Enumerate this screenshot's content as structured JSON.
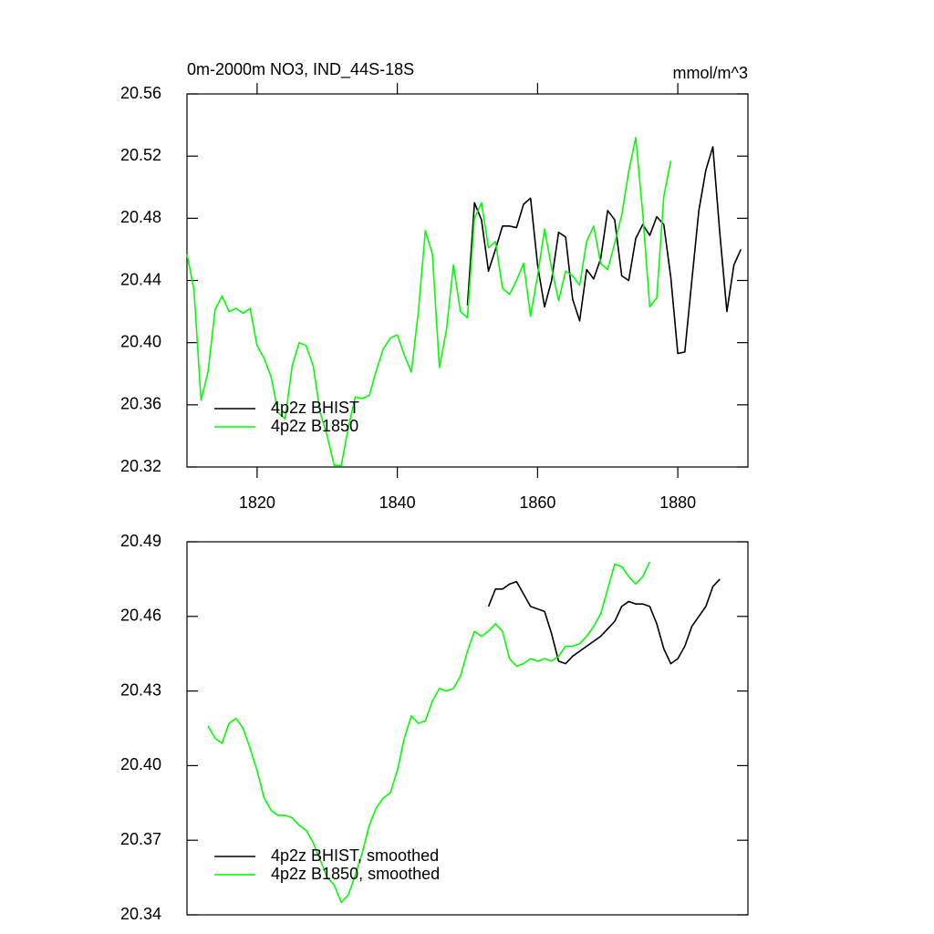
{
  "chart_data": [
    {
      "type": "line",
      "title": "0m-2000m NO3, IND_44S-18S",
      "units": "mmol/m^3",
      "x": [
        1810,
        1811,
        1812,
        1813,
        1814,
        1815,
        1816,
        1817,
        1818,
        1819,
        1820,
        1821,
        1822,
        1823,
        1824,
        1825,
        1826,
        1827,
        1828,
        1829,
        1830,
        1831,
        1832,
        1833,
        1834,
        1835,
        1836,
        1837,
        1838,
        1839,
        1840,
        1841,
        1842,
        1843,
        1844,
        1845,
        1846,
        1847,
        1848,
        1849,
        1850,
        1851,
        1852,
        1853,
        1854,
        1855,
        1856,
        1857,
        1858,
        1859,
        1860,
        1861,
        1862,
        1863,
        1864,
        1865,
        1866,
        1867,
        1868,
        1869,
        1870,
        1871,
        1872,
        1873,
        1874,
        1875,
        1876,
        1877,
        1878,
        1879,
        1880,
        1881,
        1882,
        1883,
        1884,
        1885,
        1886,
        1887,
        1888,
        1889
      ],
      "series": [
        {
          "name": "4p2z BHIST",
          "color": "#000000",
          "values": [
            null,
            null,
            null,
            null,
            null,
            null,
            null,
            null,
            null,
            null,
            null,
            null,
            null,
            null,
            null,
            null,
            null,
            null,
            null,
            null,
            null,
            null,
            null,
            null,
            null,
            null,
            null,
            null,
            null,
            null,
            null,
            null,
            null,
            null,
            null,
            null,
            null,
            null,
            null,
            null,
            20.424,
            20.49,
            20.479,
            20.446,
            20.46,
            20.475,
            20.475,
            20.474,
            20.489,
            20.493,
            20.45,
            20.423,
            20.44,
            20.471,
            20.468,
            20.428,
            20.414,
            20.447,
            20.441,
            20.454,
            20.485,
            20.479,
            20.443,
            20.44,
            20.467,
            20.476,
            20.469,
            20.481,
            20.476,
            20.442,
            20.393,
            20.394,
            20.44,
            20.485,
            20.511,
            20.526,
            20.47,
            20.42,
            20.45,
            20.46
          ]
        },
        {
          "name": "4p2z B1850",
          "color": "#00ff00",
          "values": [
            20.457,
            20.434,
            20.363,
            20.381,
            20.421,
            20.43,
            20.42,
            20.422,
            20.419,
            20.422,
            20.398,
            20.39,
            20.378,
            20.355,
            20.351,
            20.385,
            20.4,
            20.398,
            20.385,
            20.355,
            20.34,
            20.321,
            20.321,
            20.345,
            20.365,
            20.364,
            20.366,
            20.382,
            20.396,
            20.403,
            20.405,
            20.392,
            20.381,
            20.42,
            20.472,
            20.457,
            20.384,
            20.408,
            20.45,
            20.42,
            20.416,
            20.48,
            20.49,
            20.461,
            20.465,
            20.435,
            20.431,
            20.44,
            20.451,
            20.417,
            20.443,
            20.473,
            20.448,
            20.427,
            20.446,
            20.443,
            20.437,
            20.465,
            20.475,
            20.451,
            20.447,
            20.464,
            20.482,
            20.51,
            20.532,
            20.483,
            20.423,
            20.429,
            20.494,
            20.517,
            null,
            null,
            null,
            null,
            null,
            null,
            null,
            null,
            null,
            null
          ]
        }
      ],
      "xlim": [
        1810,
        1890
      ],
      "xticks": [
        1820,
        1840,
        1860,
        1880
      ],
      "ylim": [
        20.32,
        20.56
      ],
      "yticks": [
        20.32,
        20.36,
        {
          "value": 20.4,
          "label": "20.40"
        },
        20.44,
        20.48,
        20.52,
        20.56
      ],
      "legend": "lower left"
    },
    {
      "type": "line",
      "x": [
        1813,
        1814,
        1815,
        1816,
        1817,
        1818,
        1819,
        1820,
        1821,
        1822,
        1823,
        1824,
        1825,
        1826,
        1827,
        1828,
        1829,
        1830,
        1831,
        1832,
        1833,
        1834,
        1835,
        1836,
        1837,
        1838,
        1839,
        1840,
        1841,
        1842,
        1843,
        1844,
        1845,
        1846,
        1847,
        1848,
        1849,
        1850,
        1851,
        1852,
        1853,
        1854,
        1855,
        1856,
        1857,
        1858,
        1859,
        1860,
        1861,
        1862,
        1863,
        1864,
        1865,
        1866,
        1867,
        1868,
        1869,
        1870,
        1871,
        1872,
        1873,
        1874,
        1875,
        1876,
        1877,
        1878,
        1879,
        1880,
        1881,
        1882,
        1883,
        1884,
        1885,
        1886
      ],
      "series": [
        {
          "name": "4p2z BHIST, smoothed",
          "color": "#000000",
          "values": [
            null,
            null,
            null,
            null,
            null,
            null,
            null,
            null,
            null,
            null,
            null,
            null,
            null,
            null,
            null,
            null,
            null,
            null,
            null,
            null,
            null,
            null,
            null,
            null,
            null,
            null,
            null,
            null,
            null,
            null,
            null,
            null,
            null,
            null,
            null,
            null,
            null,
            null,
            null,
            null,
            20.464,
            20.471,
            20.471,
            20.473,
            20.474,
            20.469,
            20.464,
            20.463,
            20.462,
            20.453,
            20.442,
            20.441,
            20.444,
            20.446,
            20.448,
            20.45,
            20.452,
            20.455,
            20.458,
            20.464,
            20.466,
            20.465,
            20.465,
            20.464,
            20.457,
            20.447,
            20.441,
            20.443,
            20.448,
            20.456,
            20.46,
            20.464,
            20.472,
            20.475
          ]
        },
        {
          "name": "4p2z B1850, smoothed",
          "color": "#00ff00",
          "values": [
            20.416,
            20.411,
            20.409,
            20.417,
            20.419,
            20.415,
            20.407,
            20.398,
            20.387,
            20.382,
            20.38,
            20.38,
            20.379,
            20.376,
            20.374,
            20.369,
            20.362,
            20.355,
            20.352,
            20.345,
            20.348,
            20.356,
            20.365,
            20.376,
            20.383,
            20.387,
            20.389,
            20.398,
            20.411,
            20.42,
            20.417,
            20.418,
            20.426,
            20.431,
            20.43,
            20.431,
            20.436,
            20.446,
            20.454,
            20.452,
            20.454,
            20.457,
            20.454,
            20.443,
            20.44,
            20.441,
            20.443,
            20.442,
            20.443,
            20.442,
            20.444,
            20.448,
            20.448,
            20.449,
            20.452,
            20.456,
            20.461,
            20.471,
            20.481,
            20.48,
            20.476,
            20.473,
            20.476,
            20.482,
            null,
            null,
            null,
            null,
            null,
            null,
            null,
            null,
            null,
            null
          ]
        }
      ],
      "xlim": [
        1810,
        1890
      ],
      "ylim": [
        20.34,
        20.49
      ],
      "yticks": [
        20.34,
        20.37,
        {
          "value": 20.4,
          "label": "20.40"
        },
        20.43,
        20.46,
        20.49
      ],
      "legend": "lower left"
    }
  ]
}
